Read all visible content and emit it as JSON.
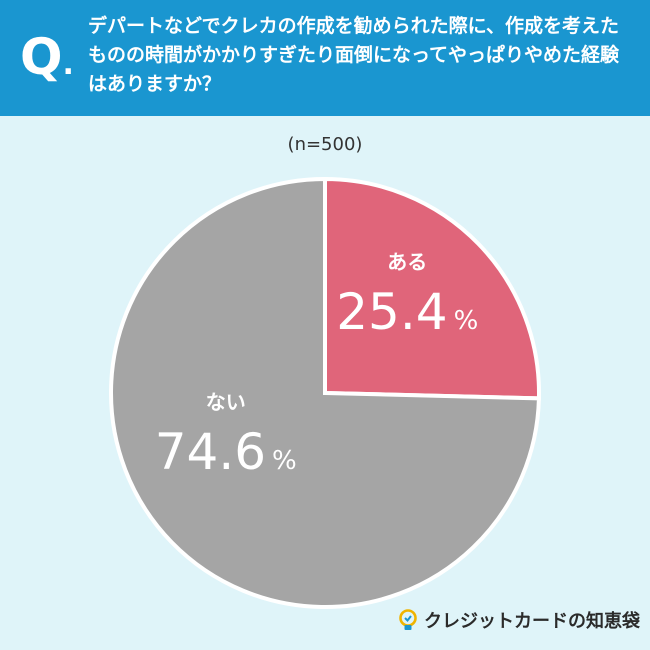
{
  "header": {
    "q_label": "Q",
    "q_dot": ".",
    "question": "デパートなどでクレカの作成を勧められた際に、作成を考えたものの時間がかかりすぎたり面倒になってやっぱりやめた経験はありますか？"
  },
  "brand": {
    "name": "クレジットカードの知恵袋",
    "icon": "bulb-icon"
  },
  "chart_data": {
    "type": "pie",
    "subtitle": "(n=500)",
    "unit": "%",
    "slices": [
      {
        "label": "ある",
        "value": 25.4,
        "value_text": "25.4",
        "color": "#e0657a"
      },
      {
        "label": "ない",
        "value": 74.6,
        "value_text": "74.6",
        "color": "#a5a5a5"
      }
    ],
    "start_angle_deg": 0,
    "direction": "clockwise"
  }
}
